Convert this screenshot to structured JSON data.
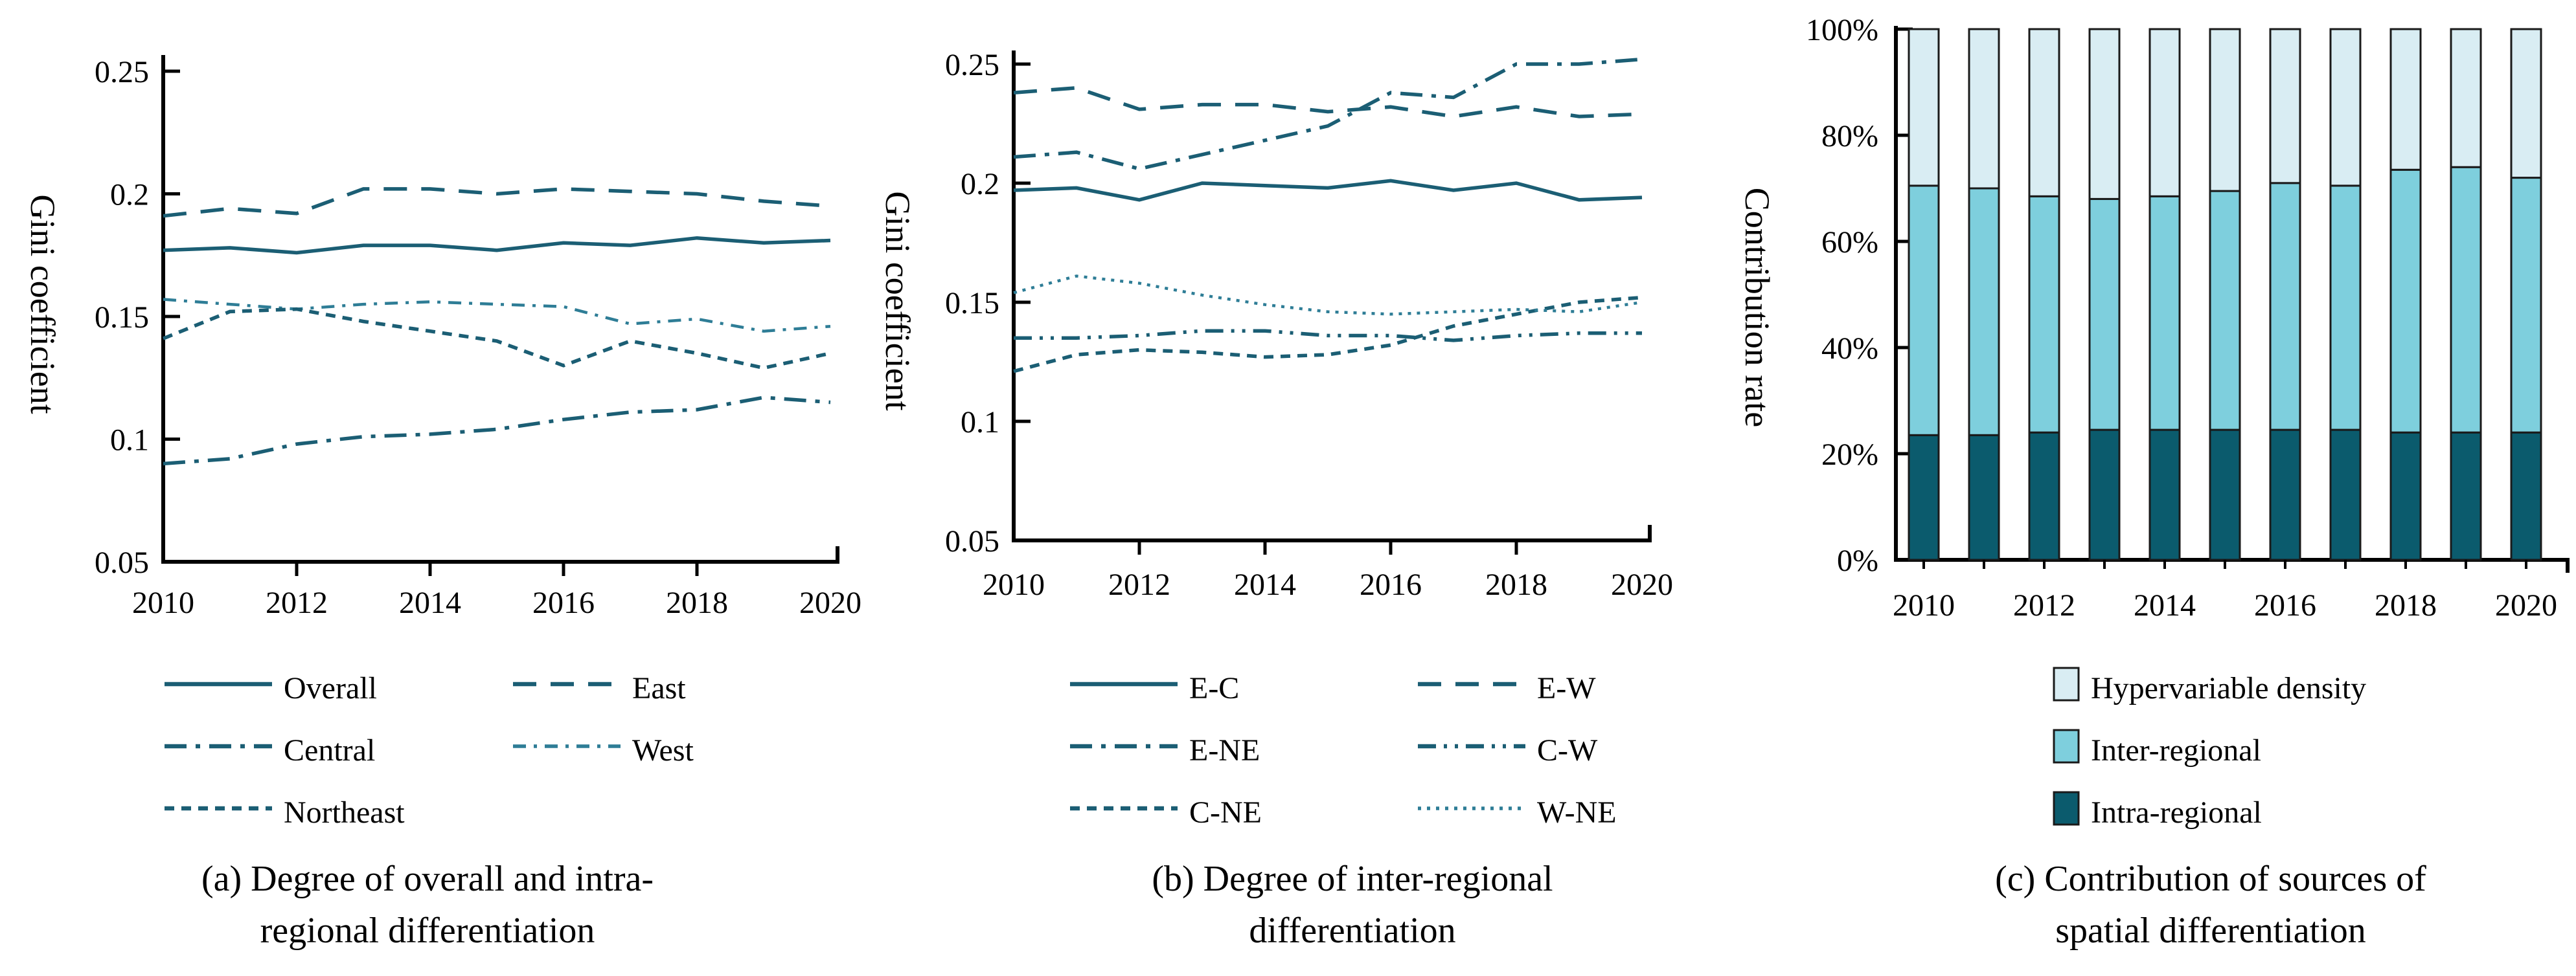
{
  "figure": {
    "background": "#ffffff",
    "text_color": "#000000"
  },
  "chart_data": [
    {
      "id": "a",
      "type": "line",
      "ylabel": "Gini coefficient",
      "line_color": "#1b5e74",
      "light_line_color": "#2e7d96",
      "x": [
        2010,
        2011,
        2012,
        2013,
        2014,
        2015,
        2016,
        2017,
        2018,
        2019,
        2020
      ],
      "xtick_labels": [
        "2010",
        "2012",
        "2014",
        "2016",
        "2018",
        "2020"
      ],
      "ylim": [
        0.05,
        0.25
      ],
      "ytick_labels": [
        "0.25",
        "0.2",
        "0.15",
        "0.1",
        "0.05"
      ],
      "grid": false,
      "legend_position": "below",
      "series": [
        {
          "name": "Overall",
          "values": [
            0.177,
            0.178,
            0.176,
            0.179,
            0.179,
            0.177,
            0.18,
            0.179,
            0.182,
            0.18,
            0.181
          ]
        },
        {
          "name": "East",
          "values": [
            0.191,
            0.194,
            0.192,
            0.202,
            0.202,
            0.2,
            0.202,
            0.201,
            0.2,
            0.197,
            0.195
          ]
        },
        {
          "name": "Central",
          "values": [
            0.09,
            0.092,
            0.098,
            0.101,
            0.102,
            0.104,
            0.108,
            0.111,
            0.112,
            0.117,
            0.115
          ]
        },
        {
          "name": "West",
          "values": [
            0.157,
            0.155,
            0.153,
            0.155,
            0.156,
            0.155,
            0.154,
            0.147,
            0.149,
            0.144,
            0.146
          ]
        },
        {
          "name": "Northeast",
          "values": [
            0.141,
            0.152,
            0.153,
            0.148,
            0.144,
            0.14,
            0.13,
            0.14,
            0.135,
            0.129,
            0.135
          ]
        }
      ],
      "caption_line1": "(a) Degree of overall and intra-",
      "caption_line2": "regional differentiation"
    },
    {
      "id": "b",
      "type": "line",
      "ylabel": "Gini coefficient",
      "line_color": "#1b5e74",
      "light_line_color": "#2e7d96",
      "x": [
        2010,
        2011,
        2012,
        2013,
        2014,
        2015,
        2016,
        2017,
        2018,
        2019,
        2020
      ],
      "xtick_labels": [
        "2010",
        "2012",
        "2014",
        "2016",
        "2018",
        "2020"
      ],
      "ylim": [
        0.05,
        0.25
      ],
      "ytick_labels": [
        "0.25",
        "0.2",
        "0.15",
        "0.1",
        "0.05"
      ],
      "grid": false,
      "legend_position": "below",
      "series": [
        {
          "name": "E-C",
          "values": [
            0.197,
            0.198,
            0.193,
            0.2,
            0.199,
            0.198,
            0.201,
            0.197,
            0.2,
            0.193,
            0.194
          ]
        },
        {
          "name": "E-W",
          "values": [
            0.238,
            0.24,
            0.231,
            0.233,
            0.233,
            0.23,
            0.232,
            0.228,
            0.232,
            0.228,
            0.229
          ]
        },
        {
          "name": "E-NE",
          "values": [
            0.211,
            0.213,
            0.206,
            0.212,
            0.218,
            0.224,
            0.238,
            0.236,
            0.25,
            0.25,
            0.252
          ]
        },
        {
          "name": "C-W",
          "values": [
            0.135,
            0.135,
            0.136,
            0.138,
            0.138,
            0.136,
            0.136,
            0.134,
            0.136,
            0.137,
            0.137
          ]
        },
        {
          "name": "C-NE",
          "values": [
            0.121,
            0.128,
            0.13,
            0.129,
            0.127,
            0.128,
            0.132,
            0.14,
            0.145,
            0.15,
            0.152
          ]
        },
        {
          "name": "W-NE",
          "values": [
            0.154,
            0.161,
            0.158,
            0.153,
            0.149,
            0.146,
            0.145,
            0.146,
            0.147,
            0.146,
            0.15
          ]
        }
      ],
      "caption_line1": "(b) Degree of inter-regional",
      "caption_line2": "differentiation"
    },
    {
      "id": "c",
      "type": "bar",
      "stacked": true,
      "ylabel": "Contribution rate",
      "categories": [
        2010,
        2011,
        2012,
        2013,
        2014,
        2015,
        2016,
        2017,
        2018,
        2019,
        2020
      ],
      "xtick_labels": [
        "2010",
        "2012",
        "2014",
        "2016",
        "2018",
        "2020"
      ],
      "ylim": [
        0,
        100
      ],
      "ytick_labels": [
        "100%",
        "80%",
        "60%",
        "40%",
        "20%",
        "0%"
      ],
      "bar_outline_color": "#1a1a1a",
      "series": [
        {
          "name": "Intra-regional",
          "color": "#0b5b6d",
          "values": [
            23.5,
            23.5,
            24,
            24.5,
            24.5,
            24.5,
            24.5,
            24.5,
            24,
            24,
            24
          ]
        },
        {
          "name": "Inter-regional",
          "color": "#7ecfdd",
          "values": [
            47,
            46.5,
            44.5,
            43.5,
            44,
            45,
            46.5,
            46,
            49.5,
            50,
            48
          ]
        },
        {
          "name": "Hypervariable density",
          "color": "#d9edf3",
          "values": [
            29.5,
            30,
            31.5,
            32,
            31.5,
            30.5,
            29,
            29.5,
            26.5,
            26,
            28
          ]
        }
      ],
      "caption_line1": "(c) Contribution of sources of",
      "caption_line2": "spatial differentiation"
    }
  ]
}
